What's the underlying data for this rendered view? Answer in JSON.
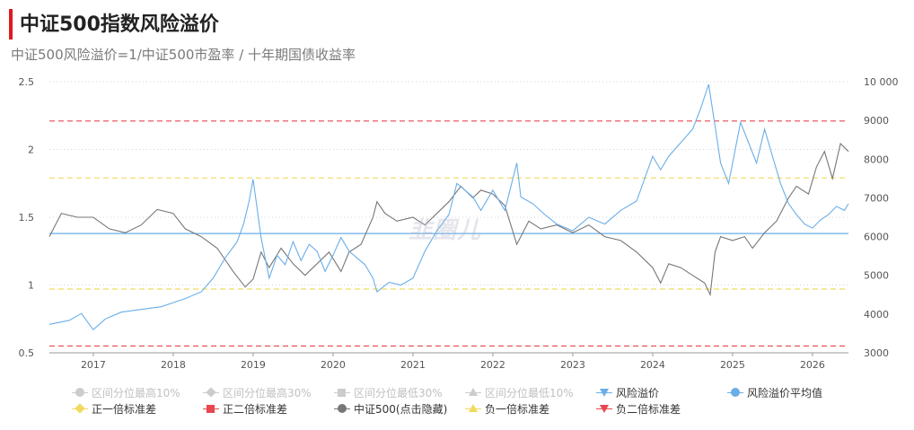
{
  "header": {
    "title": "中证500指数风险溢价",
    "subtitle": "中证500风险溢价=1/中证500市盈率 / 十年期国债收益率",
    "watermark": "韭圈儿"
  },
  "colors": {
    "title_accent": "#e0191f",
    "risk_premium": "#6aaee8",
    "index": "#777777",
    "mean": "#6aaee8",
    "plus_one_sd": "#f2d95c",
    "minus_one_sd": "#f2d95c",
    "plus_two_sd": "#e8474f",
    "minus_two_sd": "#e8474f"
  },
  "legend": [
    {
      "label": "区间分位最高10%",
      "marker": "circle",
      "color": "#cccccc",
      "muted": true
    },
    {
      "label": "区间分位最高30%",
      "marker": "diamond",
      "color": "#cccccc",
      "muted": true
    },
    {
      "label": "区间分位最低30%",
      "marker": "square",
      "color": "#cccccc",
      "muted": true
    },
    {
      "label": "区间分位最低10%",
      "marker": "tri-up",
      "color": "#cccccc",
      "muted": true
    },
    {
      "label": "风险溢价",
      "marker": "tri-down",
      "color": "#6aaee8",
      "muted": false
    },
    {
      "label": "风险溢价平均值",
      "marker": "circle",
      "color": "#6aaee8",
      "muted": false
    },
    {
      "label": "正一倍标准差",
      "marker": "diamond",
      "color": "#f2d95c",
      "muted": false
    },
    {
      "label": "正二倍标准差",
      "marker": "square",
      "color": "#e8474f",
      "muted": false
    },
    {
      "label": "中证500(点击隐藏)",
      "marker": "circle",
      "color": "#777777",
      "muted": false
    },
    {
      "label": "负一倍标准差",
      "marker": "tri-up",
      "color": "#f2d95c",
      "muted": false
    },
    {
      "label": "负二倍标准差",
      "marker": "tri-down",
      "color": "#e8474f",
      "muted": false
    }
  ],
  "chart_data": {
    "type": "line",
    "x_ticks": [
      "2017",
      "2018",
      "2019",
      "2020",
      "2021",
      "2022",
      "2023",
      "2024",
      "2025",
      "2026"
    ],
    "y_left": {
      "min": 0.5,
      "max": 2.5,
      "ticks": [
        "0.5",
        "1",
        "1.5",
        "2",
        "2.5"
      ]
    },
    "y_right": {
      "min": 3000,
      "max": 10000,
      "ticks": [
        "3000",
        "4000",
        "5000",
        "6000",
        "7000",
        "8000",
        "9000",
        "10 000"
      ]
    },
    "x_range": [
      2016.45,
      2026.45
    ],
    "grid": "horizontal dotted",
    "reference_lines": {
      "mean": 1.38,
      "plus_one_sd": 1.79,
      "minus_one_sd": 0.97,
      "plus_two_sd": 2.21,
      "minus_two_sd": 0.55
    },
    "series": [
      {
        "name": "风险溢价",
        "axis": "left",
        "x": [
          2016.45,
          2016.7,
          2016.85,
          2017.0,
          2017.15,
          2017.35,
          2017.6,
          2017.85,
          2018.0,
          2018.15,
          2018.35,
          2018.5,
          2018.65,
          2018.8,
          2018.88,
          2018.95,
          2019.0,
          2019.1,
          2019.2,
          2019.3,
          2019.4,
          2019.5,
          2019.6,
          2019.7,
          2019.8,
          2019.9,
          2020.0,
          2020.1,
          2020.2,
          2020.3,
          2020.4,
          2020.5,
          2020.55,
          2020.7,
          2020.85,
          2021.0,
          2021.15,
          2021.3,
          2021.45,
          2021.55,
          2021.65,
          2021.75,
          2021.85,
          2022.0,
          2022.15,
          2022.3,
          2022.35,
          2022.5,
          2022.65,
          2022.8,
          2023.0,
          2023.2,
          2023.4,
          2023.6,
          2023.8,
          2024.0,
          2024.1,
          2024.2,
          2024.35,
          2024.5,
          2024.6,
          2024.7,
          2024.8,
          2024.85,
          2024.95,
          2025.1,
          2025.2,
          2025.3,
          2025.4,
          2025.5,
          2025.6,
          2025.7,
          2025.8,
          2025.9,
          2026.0,
          2026.1,
          2026.2,
          2026.3,
          2026.4,
          2026.45
        ],
        "values": [
          0.71,
          0.74,
          0.79,
          0.67,
          0.75,
          0.8,
          0.82,
          0.84,
          0.87,
          0.9,
          0.95,
          1.05,
          1.2,
          1.32,
          1.45,
          1.62,
          1.78,
          1.35,
          1.05,
          1.22,
          1.15,
          1.32,
          1.18,
          1.3,
          1.25,
          1.1,
          1.22,
          1.35,
          1.25,
          1.2,
          1.15,
          1.05,
          0.95,
          1.02,
          1.0,
          1.05,
          1.25,
          1.4,
          1.52,
          1.75,
          1.7,
          1.65,
          1.55,
          1.7,
          1.55,
          1.9,
          1.65,
          1.6,
          1.52,
          1.45,
          1.4,
          1.5,
          1.45,
          1.55,
          1.62,
          1.95,
          1.85,
          1.95,
          2.05,
          2.15,
          2.3,
          2.48,
          2.1,
          1.9,
          1.75,
          2.2,
          2.05,
          1.9,
          2.15,
          1.95,
          1.75,
          1.6,
          1.52,
          1.45,
          1.42,
          1.48,
          1.52,
          1.58,
          1.55,
          1.6
        ]
      },
      {
        "name": "中证500(点击隐藏)",
        "axis": "right",
        "x": [
          2016.45,
          2016.6,
          2016.8,
          2017.0,
          2017.2,
          2017.4,
          2017.6,
          2017.8,
          2018.0,
          2018.15,
          2018.35,
          2018.55,
          2018.75,
          2018.9,
          2019.0,
          2019.1,
          2019.2,
          2019.35,
          2019.5,
          2019.65,
          2019.8,
          2019.95,
          2020.1,
          2020.2,
          2020.35,
          2020.5,
          2020.55,
          2020.65,
          2020.8,
          2021.0,
          2021.15,
          2021.3,
          2021.45,
          2021.6,
          2021.75,
          2021.85,
          2022.0,
          2022.15,
          2022.3,
          2022.45,
          2022.6,
          2022.8,
          2023.0,
          2023.2,
          2023.4,
          2023.6,
          2023.8,
          2024.0,
          2024.1,
          2024.2,
          2024.35,
          2024.5,
          2024.65,
          2024.72,
          2024.78,
          2024.85,
          2025.0,
          2025.15,
          2025.25,
          2025.4,
          2025.55,
          2025.7,
          2025.8,
          2025.95,
          2026.05,
          2026.15,
          2026.25,
          2026.35,
          2026.45
        ],
        "values": [
          6000,
          6600,
          6500,
          6500,
          6200,
          6100,
          6300,
          6700,
          6600,
          6200,
          6000,
          5700,
          5100,
          4700,
          4900,
          5600,
          5200,
          5700,
          5300,
          5000,
          5300,
          5600,
          5100,
          5600,
          5800,
          6500,
          6900,
          6600,
          6400,
          6500,
          6300,
          6600,
          6900,
          7300,
          7000,
          7200,
          7100,
          6800,
          5800,
          6400,
          6200,
          6300,
          6100,
          6300,
          6000,
          5900,
          5600,
          5200,
          4800,
          5300,
          5200,
          5000,
          4800,
          4500,
          5600,
          6000,
          5900,
          6000,
          5700,
          6100,
          6400,
          7000,
          7300,
          7100,
          7800,
          8200,
          7500,
          8400,
          8200
        ]
      }
    ]
  }
}
